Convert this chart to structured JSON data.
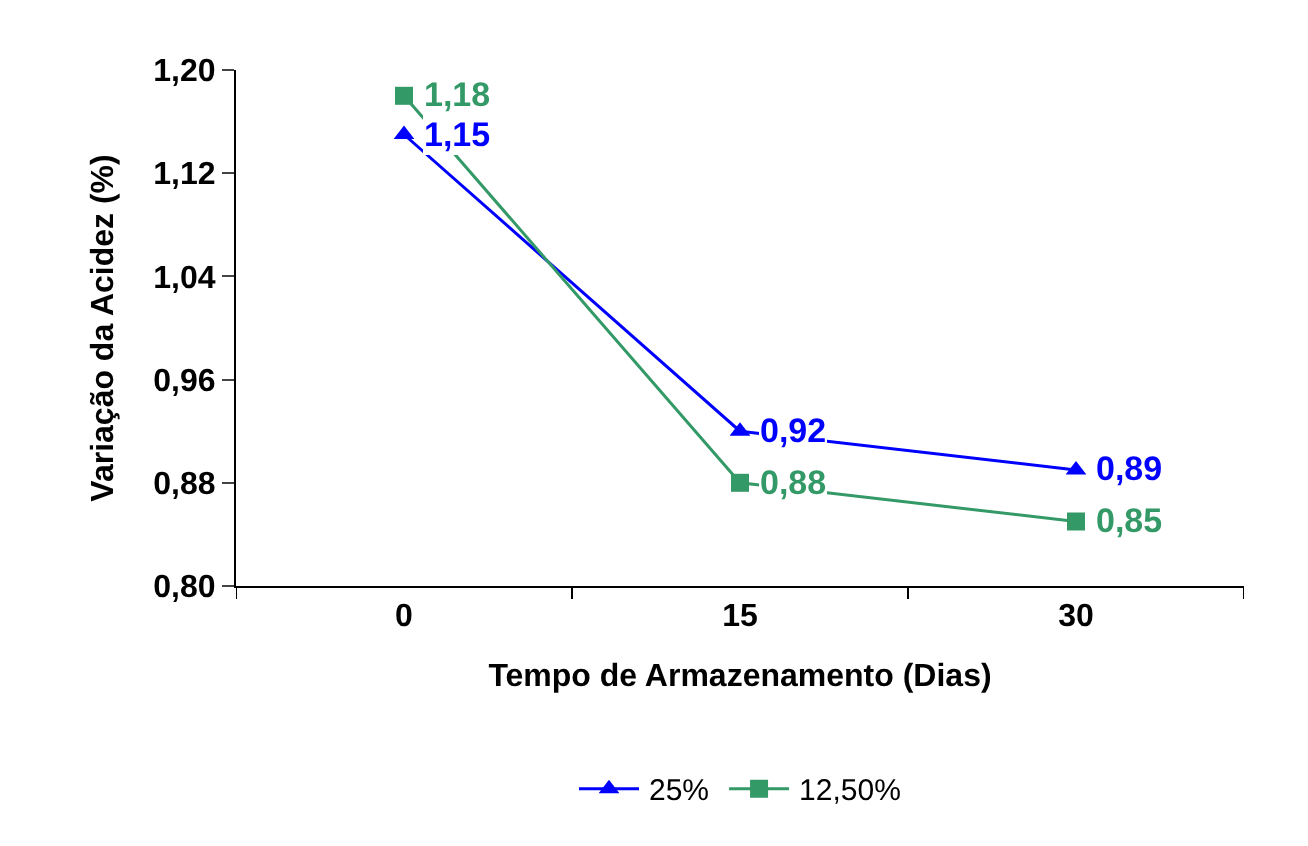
{
  "chart_data": {
    "type": "line",
    "xlabel": "Tempo de Armazenamento (Dias)",
    "ylabel": "Variação da Acidez (%)",
    "categories": [
      "0",
      "15",
      "30"
    ],
    "series": [
      {
        "name": "25%",
        "color": "#0000ff",
        "marker": "triangle",
        "values": [
          1.15,
          0.92,
          0.89
        ],
        "value_labels": [
          "1,15",
          "0,92",
          "0,89"
        ]
      },
      {
        "name": "12,50%",
        "color": "#339966",
        "marker": "square",
        "values": [
          1.18,
          0.88,
          0.85
        ],
        "value_labels": [
          "1,18",
          "0,88",
          "0,85"
        ]
      }
    ],
    "ylim": [
      0.8,
      1.2
    ],
    "yticks": [
      {
        "value": 0.8,
        "label": "0,80"
      },
      {
        "value": 0.88,
        "label": "0,88"
      },
      {
        "value": 0.96,
        "label": "0,96"
      },
      {
        "value": 1.04,
        "label": "1,04"
      },
      {
        "value": 1.12,
        "label": "1,12"
      },
      {
        "value": 1.2,
        "label": "1,20"
      }
    ],
    "legend": "bottom"
  }
}
